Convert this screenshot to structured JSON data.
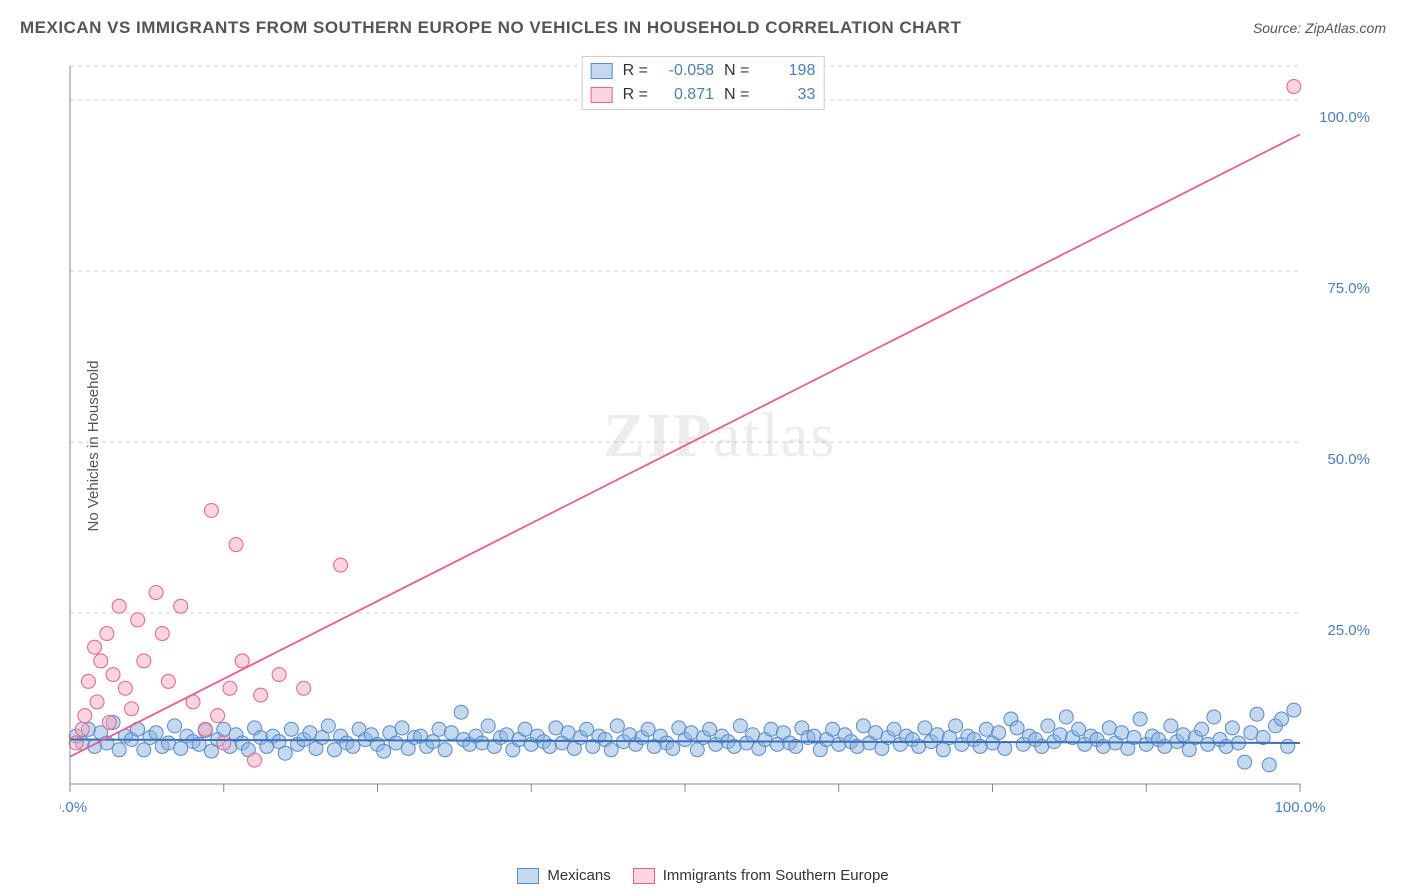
{
  "title": "MEXICAN VS IMMIGRANTS FROM SOUTHERN EUROPE NO VEHICLES IN HOUSEHOLD CORRELATION CHART",
  "source": "Source: ZipAtlas.com",
  "y_axis_label": "No Vehicles in Household",
  "watermark": {
    "bold": "ZIP",
    "light": "atlas",
    "opacity": 0.07,
    "fontsize": 62
  },
  "chart": {
    "type": "scatter",
    "xlim": [
      0,
      100
    ],
    "ylim": [
      0,
      105
    ],
    "x_ticks": [
      0,
      12.5,
      25,
      37.5,
      50,
      62.5,
      75,
      87.5,
      100
    ],
    "x_tick_labels": {
      "0": "0.0%",
      "100": "100.0%"
    },
    "y_ticks": [
      25,
      50,
      75,
      100
    ],
    "y_tick_labels": {
      "25": "25.0%",
      "50": "50.0%",
      "75": "75.0%",
      "100": "100.0%"
    },
    "grid_color": "#d0d0d0",
    "grid_dash": "4 4",
    "axis_color": "#888",
    "background_color": "#ffffff",
    "tick_label_color": "#4a7ebb",
    "tick_label_fontsize": 15,
    "marker_radius": 7
  },
  "series_blue": {
    "label": "Mexicans",
    "R": "-0.058",
    "N": "198",
    "fill": "#8ab4e0",
    "stroke": "#5a8ac8",
    "opacity": 0.5,
    "regression": {
      "x1": 0,
      "y1": 6.5,
      "x2": 100,
      "y2": 6.0,
      "color": "#3a6fb5",
      "width": 2
    },
    "points": [
      [
        0.5,
        7
      ],
      [
        1,
        6
      ],
      [
        1.5,
        8
      ],
      [
        2,
        5.5
      ],
      [
        2.5,
        7.5
      ],
      [
        3,
        6
      ],
      [
        3.5,
        9
      ],
      [
        4,
        5
      ],
      [
        4.5,
        7
      ],
      [
        5,
        6.5
      ],
      [
        5.5,
        8
      ],
      [
        6,
        5
      ],
      [
        6.5,
        6.8
      ],
      [
        7,
        7.5
      ],
      [
        7.5,
        5.5
      ],
      [
        8,
        6
      ],
      [
        8.5,
        8.5
      ],
      [
        9,
        5.2
      ],
      [
        9.5,
        7
      ],
      [
        10,
        6.2
      ],
      [
        10.5,
        5.8
      ],
      [
        11,
        7.8
      ],
      [
        11.5,
        4.8
      ],
      [
        12,
        6.5
      ],
      [
        12.5,
        8
      ],
      [
        13,
        5.5
      ],
      [
        13.5,
        7.2
      ],
      [
        14,
        6
      ],
      [
        14.5,
        5
      ],
      [
        15,
        8.2
      ],
      [
        15.5,
        6.8
      ],
      [
        16,
        5.5
      ],
      [
        16.5,
        7
      ],
      [
        17,
        6.2
      ],
      [
        17.5,
        4.5
      ],
      [
        18,
        8
      ],
      [
        18.5,
        5.8
      ],
      [
        19,
        6.5
      ],
      [
        19.5,
        7.5
      ],
      [
        20,
        5.2
      ],
      [
        20.5,
        6.8
      ],
      [
        21,
        8.5
      ],
      [
        21.5,
        5
      ],
      [
        22,
        7
      ],
      [
        22.5,
        6
      ],
      [
        23,
        5.5
      ],
      [
        23.5,
        8
      ],
      [
        24,
        6.5
      ],
      [
        24.5,
        7.2
      ],
      [
        25,
        5.8
      ],
      [
        25.5,
        4.8
      ],
      [
        26,
        7.5
      ],
      [
        26.5,
        6
      ],
      [
        27,
        8.2
      ],
      [
        27.5,
        5.2
      ],
      [
        28,
        6.8
      ],
      [
        28.5,
        7
      ],
      [
        29,
        5.5
      ],
      [
        29.5,
        6.2
      ],
      [
        30,
        8
      ],
      [
        30.5,
        5
      ],
      [
        31,
        7.5
      ],
      [
        31.8,
        10.5
      ],
      [
        32,
        6.5
      ],
      [
        32.5,
        5.8
      ],
      [
        33,
        7
      ],
      [
        33.5,
        6
      ],
      [
        34,
        8.5
      ],
      [
        34.5,
        5.5
      ],
      [
        35,
        6.8
      ],
      [
        35.5,
        7.2
      ],
      [
        36,
        5
      ],
      [
        36.5,
        6.5
      ],
      [
        37,
        8
      ],
      [
        37.5,
        5.8
      ],
      [
        38,
        7
      ],
      [
        38.5,
        6.2
      ],
      [
        39,
        5.5
      ],
      [
        39.5,
        8.2
      ],
      [
        40,
        6
      ],
      [
        40.5,
        7.5
      ],
      [
        41,
        5.2
      ],
      [
        41.5,
        6.8
      ],
      [
        42,
        8
      ],
      [
        42.5,
        5.5
      ],
      [
        43,
        7
      ],
      [
        43.5,
        6.5
      ],
      [
        44,
        5
      ],
      [
        44.5,
        8.5
      ],
      [
        45,
        6.2
      ],
      [
        45.5,
        7.2
      ],
      [
        46,
        5.8
      ],
      [
        46.5,
        6.8
      ],
      [
        47,
        8
      ],
      [
        47.5,
        5.5
      ],
      [
        48,
        7
      ],
      [
        48.5,
        6
      ],
      [
        49,
        5.2
      ],
      [
        49.5,
        8.2
      ],
      [
        50,
        6.5
      ],
      [
        50.5,
        7.5
      ],
      [
        51,
        5
      ],
      [
        51.5,
        6.8
      ],
      [
        52,
        8
      ],
      [
        52.5,
        5.8
      ],
      [
        53,
        7
      ],
      [
        53.5,
        6.2
      ],
      [
        54,
        5.5
      ],
      [
        54.5,
        8.5
      ],
      [
        55,
        6
      ],
      [
        55.5,
        7.2
      ],
      [
        56,
        5.2
      ],
      [
        56.5,
        6.5
      ],
      [
        57,
        8
      ],
      [
        57.5,
        5.8
      ],
      [
        58,
        7.5
      ],
      [
        58.5,
        6
      ],
      [
        59,
        5.5
      ],
      [
        59.5,
        8.2
      ],
      [
        60,
        6.8
      ],
      [
        60.5,
        7
      ],
      [
        61,
        5
      ],
      [
        61.5,
        6.5
      ],
      [
        62,
        8
      ],
      [
        62.5,
        5.8
      ],
      [
        63,
        7.2
      ],
      [
        63.5,
        6.2
      ],
      [
        64,
        5.5
      ],
      [
        64.5,
        8.5
      ],
      [
        65,
        6
      ],
      [
        65.5,
        7.5
      ],
      [
        66,
        5.2
      ],
      [
        66.5,
        6.8
      ],
      [
        67,
        8
      ],
      [
        67.5,
        5.8
      ],
      [
        68,
        7
      ],
      [
        68.5,
        6.5
      ],
      [
        69,
        5.5
      ],
      [
        69.5,
        8.2
      ],
      [
        70,
        6.2
      ],
      [
        70.5,
        7.2
      ],
      [
        71,
        5
      ],
      [
        71.5,
        6.8
      ],
      [
        72,
        8.5
      ],
      [
        72.5,
        5.8
      ],
      [
        73,
        7
      ],
      [
        73.5,
        6.5
      ],
      [
        74,
        5.5
      ],
      [
        74.5,
        8
      ],
      [
        75,
        6
      ],
      [
        75.5,
        7.5
      ],
      [
        76,
        5.2
      ],
      [
        76.5,
        9.5
      ],
      [
        77,
        8.2
      ],
      [
        77.5,
        5.8
      ],
      [
        78,
        7
      ],
      [
        78.5,
        6.5
      ],
      [
        79,
        5.5
      ],
      [
        79.5,
        8.5
      ],
      [
        80,
        6.2
      ],
      [
        80.5,
        7.2
      ],
      [
        81,
        9.8
      ],
      [
        81.5,
        6.8
      ],
      [
        82,
        8
      ],
      [
        82.5,
        5.8
      ],
      [
        83,
        7
      ],
      [
        83.5,
        6.5
      ],
      [
        84,
        5.5
      ],
      [
        84.5,
        8.2
      ],
      [
        85,
        6
      ],
      [
        85.5,
        7.5
      ],
      [
        86,
        5.2
      ],
      [
        86.5,
        6.8
      ],
      [
        87,
        9.5
      ],
      [
        87.5,
        5.8
      ],
      [
        88,
        7
      ],
      [
        88.5,
        6.5
      ],
      [
        89,
        5.5
      ],
      [
        89.5,
        8.5
      ],
      [
        90,
        6.2
      ],
      [
        90.5,
        7.2
      ],
      [
        91,
        5
      ],
      [
        91.5,
        6.8
      ],
      [
        92,
        8
      ],
      [
        92.5,
        5.8
      ],
      [
        93,
        9.8
      ],
      [
        93.5,
        6.5
      ],
      [
        94,
        5.5
      ],
      [
        94.5,
        8.2
      ],
      [
        95,
        6
      ],
      [
        95.5,
        3.2
      ],
      [
        96,
        7.5
      ],
      [
        96.5,
        10.2
      ],
      [
        97,
        6.8
      ],
      [
        97.5,
        2.8
      ],
      [
        98,
        8.5
      ],
      [
        98.5,
        9.5
      ],
      [
        99,
        5.5
      ],
      [
        99.5,
        10.8
      ]
    ]
  },
  "series_pink": {
    "label": "Immigrants from Southern Europe",
    "R": "0.871",
    "N": "33",
    "fill": "#f6a9be",
    "stroke": "#e8628b",
    "opacity": 0.5,
    "regression": {
      "x1": 0,
      "y1": 4,
      "x2": 100,
      "y2": 95,
      "color": "#e8628b",
      "width": 1.8
    },
    "points": [
      [
        0.5,
        6
      ],
      [
        1,
        8
      ],
      [
        1.2,
        10
      ],
      [
        1.5,
        15
      ],
      [
        2,
        20
      ],
      [
        2.2,
        12
      ],
      [
        2.5,
        18
      ],
      [
        3,
        22
      ],
      [
        3.2,
        9
      ],
      [
        3.5,
        16
      ],
      [
        4,
        26
      ],
      [
        4.5,
        14
      ],
      [
        5,
        11
      ],
      [
        5.5,
        24
      ],
      [
        6,
        18
      ],
      [
        7,
        28
      ],
      [
        7.5,
        22
      ],
      [
        8,
        15
      ],
      [
        9,
        26
      ],
      [
        10,
        12
      ],
      [
        11,
        8
      ],
      [
        11.5,
        40
      ],
      [
        12,
        10
      ],
      [
        12.5,
        6
      ],
      [
        13,
        14
      ],
      [
        13.5,
        35
      ],
      [
        14,
        18
      ],
      [
        15,
        3.5
      ],
      [
        15.5,
        13
      ],
      [
        17,
        16
      ],
      [
        19,
        14
      ],
      [
        22,
        32
      ],
      [
        99.5,
        102
      ]
    ]
  },
  "stats_legend": {
    "r_label": "R =",
    "n_label": "N ="
  }
}
